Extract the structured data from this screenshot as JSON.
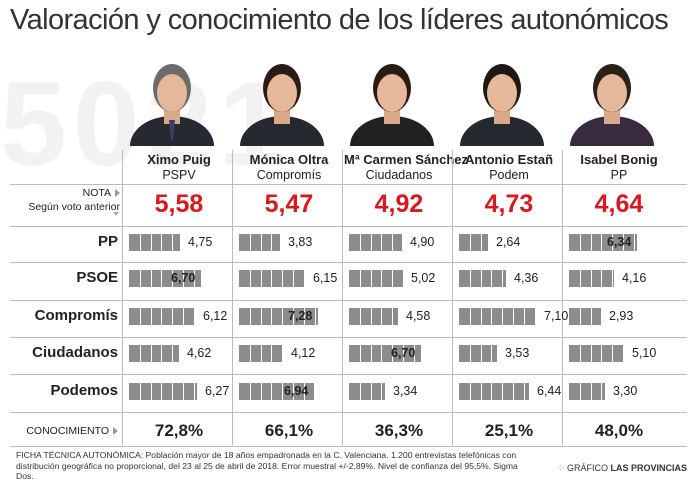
{
  "title": "Valoración y conocimiento de los líderes autonómicos",
  "background_number": "5021",
  "nota_label": "NOTA",
  "nota_sublabel": "Según voto anterior",
  "conocimiento_label": "CONOCIMIENTO",
  "leaders": [
    {
      "name": "Ximo Puig",
      "party": "PSPV",
      "nota": "5,58",
      "conocimiento": "72,8%",
      "photo": "portrait-ximo-puig"
    },
    {
      "name": "Mónica Oltra",
      "party": "Compromís",
      "nota": "5,47",
      "conocimiento": "66,1%",
      "photo": "portrait-monica-oltra"
    },
    {
      "name": "Mª Carmen Sánchez",
      "party": "Ciudadanos",
      "nota": "4,92",
      "conocimiento": "36,3%",
      "photo": "portrait-carmen-sanchez"
    },
    {
      "name": "Antonio Estañ",
      "party": "Podem",
      "nota": "4,73",
      "conocimiento": "25,1%",
      "photo": "portrait-antonio-estan"
    },
    {
      "name": "Isabel Bonig",
      "party": "PP",
      "nota": "4,64",
      "conocimiento": "48,0%",
      "photo": "portrait-isabel-bonig"
    }
  ],
  "chart_data": {
    "type": "bar",
    "title": "Valoración y conocimiento de los líderes autonómicos",
    "categories": [
      "PP",
      "PSOE",
      "Compromís",
      "Ciudadanos",
      "Podemos"
    ],
    "xlim": [
      0,
      10
    ],
    "series": [
      {
        "name": "Ximo Puig",
        "values": [
          4.75,
          6.7,
          6.12,
          4.62,
          6.27
        ],
        "labels": [
          "4,75",
          "6,70",
          "6,12",
          "4,62",
          "6,27"
        ]
      },
      {
        "name": "Mónica Oltra",
        "values": [
          3.83,
          6.15,
          7.28,
          4.12,
          6.94
        ],
        "labels": [
          "3,83",
          "6,15",
          "7,28",
          "4,12",
          "6,94"
        ]
      },
      {
        "name": "Mª Carmen Sánchez",
        "values": [
          4.9,
          5.02,
          4.58,
          6.7,
          3.34
        ],
        "labels": [
          "4,90",
          "5,02",
          "4,58",
          "6,70",
          "3,34"
        ]
      },
      {
        "name": "Antonio Estañ",
        "values": [
          2.64,
          4.36,
          7.1,
          3.53,
          6.44
        ],
        "labels": [
          "2,64",
          "4,36",
          "7,10",
          "3,53",
          "6,44"
        ]
      },
      {
        "name": "Isabel Bonig",
        "values": [
          6.34,
          4.16,
          2.93,
          5.1,
          3.3
        ],
        "labels": [
          "6,34",
          "4,16",
          "2,93",
          "5,10",
          "3,30"
        ]
      }
    ],
    "highlight_color": "#d71920",
    "bar_color": "#8c8c8c"
  },
  "footnote": "FICHA TÉCNICA AUTONÓMICA: Población mayor de 18 años empadronada en la C. Valenciana. 1.200 entrevistas telefónicas con distribución geográfica no proporcional, del 23 al 25 de abril de 2018. Error muestral +/-2,89%. Nivel de confianza del 95,5%. Sigma Dos.",
  "credit_prefix": "GRÁFICO",
  "credit_brand": "LAS PROVINCIAS"
}
